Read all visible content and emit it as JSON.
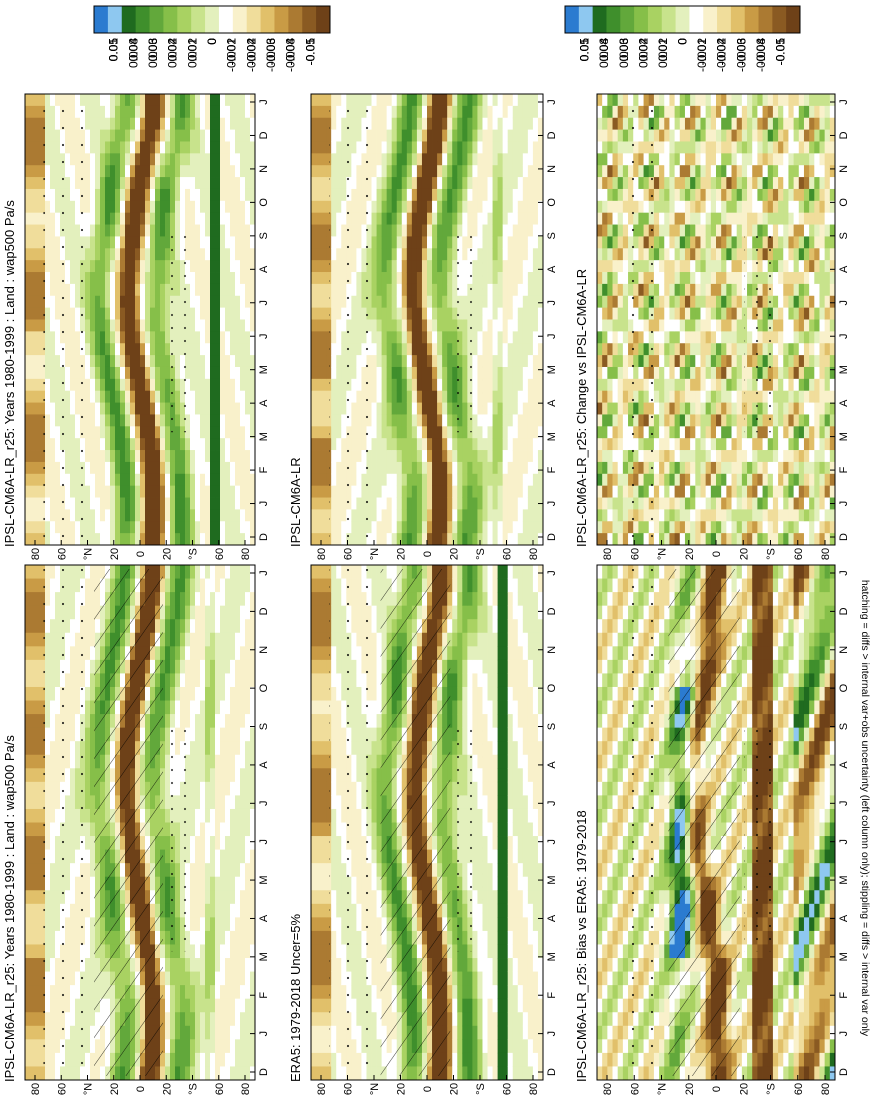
{
  "footnote": "hatching = diffs > internal var+obs uncertainty (left column only); stippling = diffs > internal var only",
  "colors": {
    "full": [
      "#2b7bd0",
      "#8ec8f0",
      "#1f6b1f",
      "#3f8f2c",
      "#62a83b",
      "#86bf49",
      "#a9d262",
      "#c8e38c",
      "#e3f0bd",
      "#ffffff",
      "#f9f1cb",
      "#f0dd9b",
      "#e1c06a",
      "#c99b45",
      "#ab7a32",
      "#8a5a22",
      "#6e4118"
    ],
    "land_sea_band": "#1f78c8"
  },
  "month_labels": [
    "D",
    "J",
    "F",
    "M",
    "A",
    "M",
    "J",
    "J",
    "A",
    "S",
    "O",
    "N",
    "D",
    "J"
  ],
  "lat_labels": [
    "80",
    "60",
    "°N",
    "20",
    "0",
    "20",
    "°S",
    "60",
    "80"
  ],
  "chart_data": [
    {
      "type": "heatmap",
      "id": "model-clim-left",
      "title": "IPSL-CM6A-LR_r25: Years 1980-1999 : Land : wap500 Pa/s",
      "x": [
        "D",
        "J",
        "F",
        "M",
        "A",
        "M",
        "J",
        "J",
        "A",
        "S",
        "O",
        "N",
        "D",
        "J"
      ],
      "y": [
        "80",
        "60",
        "°N",
        "20",
        "0",
        "20",
        "°S",
        "60",
        "80"
      ],
      "colorbar": [
        "0.05",
        "0.04",
        "0.03",
        "0.02",
        "0.01",
        "0",
        "-0.01",
        "-0.02",
        "-0.03",
        "-0.04",
        "-0.05"
      ],
      "zlim": [
        -0.05,
        0.05
      ],
      "hatching": true,
      "stippling": true
    },
    {
      "type": "heatmap",
      "id": "model-clim-right",
      "title": "IPSL-CM6A-LR_r25: Years 1980-1999 : Land : wap500 Pa/s",
      "x": [
        "D",
        "J",
        "F",
        "M",
        "A",
        "M",
        "J",
        "J",
        "A",
        "S",
        "O",
        "N",
        "D",
        "J"
      ],
      "y": [
        "80",
        "60",
        "°N",
        "20",
        "0",
        "20",
        "°S",
        "60",
        "80"
      ],
      "colorbar": [
        "0.05",
        "0.04",
        "0.03",
        "0.02",
        "0.01",
        "0",
        "-0.01",
        "-0.02",
        "-0.03",
        "-0.04",
        "-0.05"
      ],
      "zlim": [
        -0.05,
        0.05
      ],
      "hatching": false,
      "stippling": true
    },
    {
      "type": "heatmap",
      "id": "obs-clim",
      "title": "ERA5: 1979-2018 Uncer=5%",
      "x": [
        "D",
        "J",
        "F",
        "M",
        "A",
        "M",
        "J",
        "J",
        "A",
        "S",
        "O",
        "N",
        "D",
        "J"
      ],
      "y": [
        "80",
        "60",
        "°N",
        "20",
        "0",
        "20",
        "°S",
        "60",
        "80"
      ],
      "colorbar": [
        "0.05",
        "0.04",
        "0.03",
        "0.02",
        "0.01",
        "0",
        "-0.01",
        "-0.02",
        "-0.03",
        "-0.04",
        "-0.05"
      ],
      "zlim": [
        -0.05,
        0.05
      ],
      "hatching": true,
      "stippling": true
    },
    {
      "type": "heatmap",
      "id": "model-ref",
      "title": "IPSL-CM6A-LR",
      "x": [
        "D",
        "J",
        "F",
        "M",
        "A",
        "M",
        "J",
        "J",
        "A",
        "S",
        "O",
        "N",
        "D",
        "J"
      ],
      "y": [
        "80",
        "60",
        "°N",
        "20",
        "0",
        "20",
        "°S",
        "60",
        "80"
      ],
      "colorbar": [
        "0.05",
        "0.04",
        "0.03",
        "0.02",
        "0.01",
        "0",
        "-0.01",
        "-0.02",
        "-0.03",
        "-0.04",
        "-0.05"
      ],
      "zlim": [
        -0.05,
        0.05
      ],
      "hatching": false,
      "stippling": true
    },
    {
      "type": "heatmap",
      "id": "bias",
      "title": "IPSL-CM6A-LR_r25: Bias vs ERA5: 1979-2018",
      "x": [
        "D",
        "J",
        "F",
        "M",
        "A",
        "M",
        "J",
        "J",
        "A",
        "S",
        "O",
        "N",
        "D",
        "J"
      ],
      "y": [
        "80",
        "60",
        "°N",
        "20",
        "0",
        "20",
        "°S",
        "60",
        "80"
      ],
      "colorbar": [
        "0.01",
        "0.008",
        "0.006",
        "0.004",
        "0.002",
        "0",
        "-0.002",
        "-0.004",
        "-0.006",
        "-0.008",
        "-0.01"
      ],
      "zlim": [
        -0.01,
        0.01
      ],
      "hatching": true,
      "stippling": true
    },
    {
      "type": "heatmap",
      "id": "change",
      "title": "IPSL-CM6A-LR_r25: Change vs IPSL-CM6A-LR",
      "x": [
        "D",
        "J",
        "F",
        "M",
        "A",
        "M",
        "J",
        "J",
        "A",
        "S",
        "O",
        "N",
        "D",
        "J"
      ],
      "y": [
        "80",
        "60",
        "°N",
        "20",
        "0",
        "20",
        "°S",
        "60",
        "80"
      ],
      "colorbar": [
        "0.01",
        "0.008",
        "0.006",
        "0.004",
        "0.002",
        "0",
        "-0.002",
        "-0.004",
        "-0.006",
        "-0.008",
        "-0.01"
      ],
      "zlim": [
        -0.01,
        0.01
      ],
      "hatching": false,
      "stippling": true
    }
  ]
}
